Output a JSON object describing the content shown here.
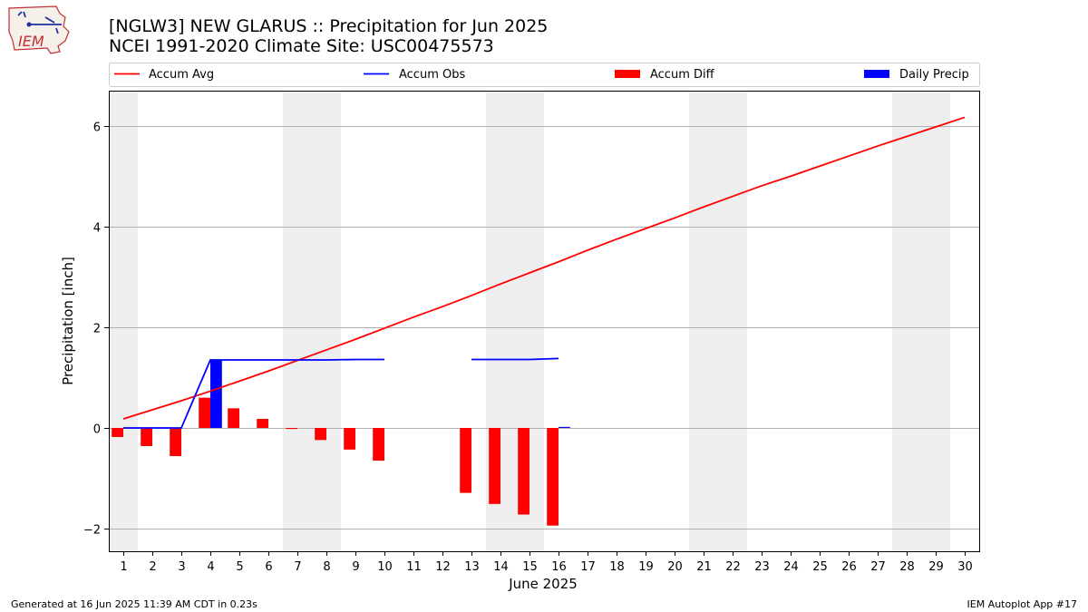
{
  "header": {
    "title_line1": "[NGLW3] NEW GLARUS :: Precipitation for Jun 2025",
    "title_line2": "NCEI 1991-2020 Climate Site: USC00475573"
  },
  "logo": {
    "text": "IEM"
  },
  "footer": {
    "left": "Generated at 16 Jun 2025 11:39 AM CDT in 0.23s",
    "right": "IEM Autoplot App #17"
  },
  "colors": {
    "accum_avg": "#ff0000",
    "accum_obs": "#0000ff",
    "accum_diff": "#ff0000",
    "daily_precip": "#0000ff",
    "weekend_shade": "#eeeeee",
    "grid": "#b0b0b0"
  },
  "chart_data": {
    "type": "bar",
    "xlabel": "June 2025",
    "ylabel": "Precipitation [inch]",
    "xlim": [
      0.5,
      30.5
    ],
    "ylim": [
      -2.45,
      6.7
    ],
    "yticks": [
      -2,
      0,
      2,
      4,
      6
    ],
    "ytick_labels": [
      "−2",
      "0",
      "2",
      "4",
      "6"
    ],
    "grid": "y",
    "legend_placement": "top",
    "days": [
      1,
      2,
      3,
      4,
      5,
      6,
      7,
      8,
      9,
      10,
      11,
      12,
      13,
      14,
      15,
      16,
      17,
      18,
      19,
      20,
      21,
      22,
      23,
      24,
      25,
      26,
      27,
      28,
      29,
      30
    ],
    "weekend_spans": [
      [
        0.5,
        1.5
      ],
      [
        6.5,
        8.5
      ],
      [
        13.5,
        15.5
      ],
      [
        20.5,
        22.5
      ],
      [
        27.5,
        29.5
      ]
    ],
    "series": [
      {
        "name": "Accum Avg",
        "kind": "line",
        "x": [
          1,
          2,
          3,
          4,
          5,
          6,
          7,
          8,
          9,
          10,
          11,
          12,
          13,
          14,
          15,
          16,
          17,
          18,
          19,
          20,
          21,
          22,
          23,
          24,
          25,
          26,
          27,
          28,
          29,
          30
        ],
        "values": [
          0.18,
          0.36,
          0.54,
          0.73,
          0.93,
          1.13,
          1.34,
          1.55,
          1.76,
          1.98,
          2.2,
          2.41,
          2.63,
          2.86,
          3.08,
          3.3,
          3.53,
          3.75,
          3.96,
          4.17,
          4.39,
          4.6,
          4.81,
          5.0,
          5.2,
          5.4,
          5.6,
          5.79,
          5.98,
          6.17
        ]
      },
      {
        "name": "Accum Obs",
        "kind": "line",
        "segments": [
          {
            "x": [
              1,
              2,
              3,
              4,
              5,
              6,
              7,
              8,
              9,
              10
            ],
            "values": [
              0,
              0,
              0,
              1.35,
              1.35,
              1.35,
              1.35,
              1.35,
              1.36,
              1.36
            ]
          },
          {
            "x": [
              13,
              14,
              15,
              16
            ],
            "values": [
              1.36,
              1.36,
              1.36,
              1.38
            ]
          }
        ]
      },
      {
        "name": "Accum Diff",
        "kind": "bar",
        "x": [
          1,
          2,
          3,
          4,
          5,
          6,
          7,
          8,
          9,
          10,
          13,
          14,
          15,
          16
        ],
        "values": [
          -0.18,
          -0.36,
          -0.56,
          0.6,
          0.39,
          0.18,
          -0.02,
          -0.24,
          -0.43,
          -0.65,
          -1.29,
          -1.51,
          -1.72,
          -1.94
        ]
      },
      {
        "name": "Daily Precip",
        "kind": "bar",
        "x": [
          4,
          16
        ],
        "values": [
          1.35,
          0.02
        ]
      }
    ]
  }
}
